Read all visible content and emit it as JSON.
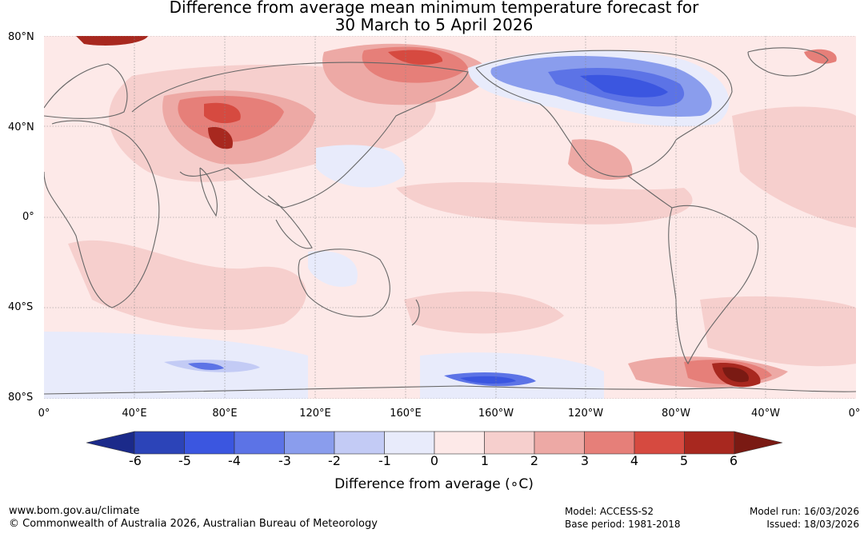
{
  "title": {
    "line1": "Difference from average mean minimum temperature forecast for",
    "line2": "30 March to 5 April 2026"
  },
  "axes": {
    "lat_labels": [
      "80°N",
      "40°N",
      "0°",
      "40°S",
      "80°S"
    ],
    "lon_labels": [
      "0°",
      "40°E",
      "80°E",
      "120°E",
      "160°E",
      "160°W",
      "120°W",
      "80°W",
      "40°W",
      "0°"
    ]
  },
  "legend": {
    "label": "Difference from average (∘C)",
    "ticks": [
      "-6",
      "-5",
      "-4",
      "-3",
      "-2",
      "-1",
      "0",
      "1",
      "2",
      "3",
      "4",
      "5",
      "6"
    ],
    "colors": [
      "#1b2a8a",
      "#2c44b8",
      "#3b56e0",
      "#5c73e6",
      "#8a9ded",
      "#c3cbf5",
      "#e8ebfb",
      "#fde9e8",
      "#f6cfcd",
      "#eda9a5",
      "#e67f79",
      "#d64a40",
      "#a8281f",
      "#7a1a13"
    ]
  },
  "regions": [
    {
      "name": "north-america-cold",
      "anomaly": "-4"
    },
    {
      "name": "central-asia-warm",
      "anomaly": "5"
    },
    {
      "name": "siberia-warm",
      "anomaly": "4"
    },
    {
      "name": "south-america-southern-ocean-warm",
      "anomaly": "6"
    },
    {
      "name": "southern-ocean-pacific-cold",
      "anomaly": "-4"
    },
    {
      "name": "southern-ocean-indian-cold",
      "anomaly": "-3"
    }
  ],
  "footer": {
    "website": "www.bom.gov.au/climate",
    "copyright": "© Commonwealth of Australia 2026, Australian Bureau of Meteorology",
    "model": "Model: ACCESS-S2",
    "base_period": "Base period: 1981-2018",
    "model_run": "Model run: 16/03/2026",
    "issued": "Issued: 18/03/2026"
  }
}
